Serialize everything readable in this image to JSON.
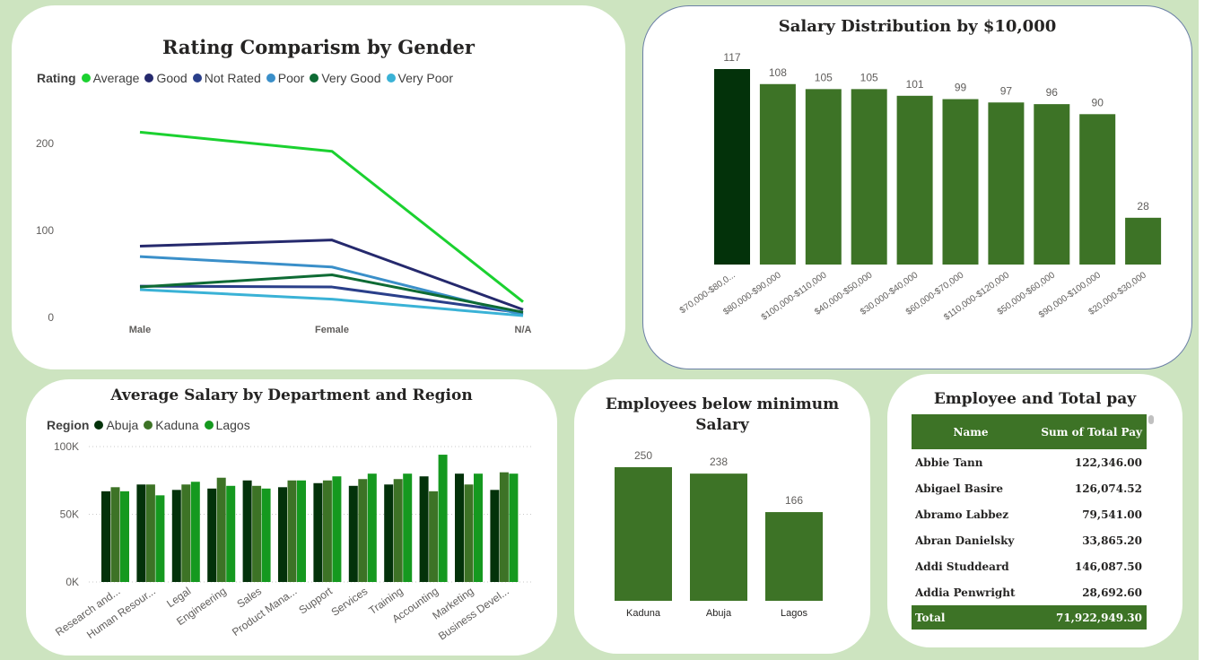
{
  "chart_data": [
    {
      "type": "line",
      "title": "Rating Comparism by Gender",
      "legend_title": "Rating",
      "legend_position": "top-left",
      "categories": [
        "Male",
        "Female",
        "N/A"
      ],
      "series": [
        {
          "name": "Average",
          "values": [
            213,
            191,
            18
          ],
          "color": "#1bd130"
        },
        {
          "name": "Good",
          "values": [
            82,
            89,
            9
          ],
          "color": "#25296d"
        },
        {
          "name": "Not Rated",
          "values": [
            36,
            35,
            5
          ],
          "color": "#2a3f8a"
        },
        {
          "name": "Poor",
          "values": [
            70,
            58,
            3
          ],
          "color": "#3a8fc9"
        },
        {
          "name": "Very Good",
          "values": [
            35,
            49,
            6
          ],
          "color": "#0e6b34"
        },
        {
          "name": "Very Poor",
          "values": [
            32,
            21,
            2
          ],
          "color": "#3ab2d6"
        }
      ],
      "yticks": [
        "0",
        "100",
        "200"
      ],
      "ylim": [
        0,
        240
      ],
      "grid": false
    },
    {
      "type": "bar",
      "title": "Salary Distribution by $10,000",
      "categories": [
        "$70,000-$80,0...",
        "$80,000-$90,000",
        "$100,000-$110,000",
        "$40,000-$50,000",
        "$30,000-$40,000",
        "$60,000-$70,000",
        "$110,000-$120,000",
        "$50,000-$60,000",
        "$90,000-$100,000",
        "$20,000-$30,000"
      ],
      "values": [
        117,
        108,
        105,
        105,
        101,
        99,
        97,
        96,
        90,
        28
      ],
      "highlight_index": 0,
      "colors": {
        "bar": "#3d7326",
        "highlight": "#03320a"
      }
    },
    {
      "type": "bar",
      "title": "Average Salary by Department and Region",
      "legend_title": "Region",
      "legend_position": "top-left",
      "categories": [
        "Research and...",
        "Human Resour...",
        "Legal",
        "Engineering",
        "Sales",
        "Product Mana...",
        "Support",
        "Services",
        "Training",
        "Accounting",
        "Marketing",
        "Business Devel..."
      ],
      "series": [
        {
          "name": "Abuja",
          "color": "#03320a",
          "values": [
            67000,
            72000,
            68000,
            69000,
            75000,
            70000,
            73000,
            71000,
            72000,
            78000,
            80000,
            68000
          ]
        },
        {
          "name": "Kaduna",
          "color": "#3d7326",
          "values": [
            70000,
            72000,
            72000,
            77000,
            71000,
            75000,
            75000,
            76000,
            76000,
            67000,
            72000,
            81000
          ]
        },
        {
          "name": "Lagos",
          "color": "#15991f",
          "values": [
            67000,
            64000,
            74000,
            71000,
            69000,
            75000,
            78000,
            80000,
            80000,
            94000,
            80000,
            80000
          ]
        }
      ],
      "yticks": [
        "0K",
        "50K",
        "100K"
      ],
      "ylim": [
        0,
        100000
      ],
      "grid": true
    },
    {
      "type": "bar",
      "title": "Employees below minimum Salary",
      "categories": [
        "Kaduna",
        "Abuja",
        "Lagos"
      ],
      "values": [
        250,
        238,
        166
      ],
      "colors": {
        "bar": "#3d7326"
      }
    },
    {
      "type": "table",
      "title": "Employee and Total pay",
      "columns": [
        "Name",
        "Sum of Total Pay"
      ],
      "rows": [
        [
          "Abbie Tann",
          "122,346.00"
        ],
        [
          "Abigael Basire",
          "126,074.52"
        ],
        [
          "Abramo Labbez",
          "79,541.00"
        ],
        [
          "Abran Danielsky",
          "33,865.20"
        ],
        [
          "Addi Studdeard",
          "146,087.50"
        ],
        [
          "Addia Penwright",
          "28,692.60"
        ]
      ],
      "total_label": "Total",
      "total_value": "71,922,949.30",
      "colors": {
        "header": "#3d7326"
      }
    }
  ]
}
